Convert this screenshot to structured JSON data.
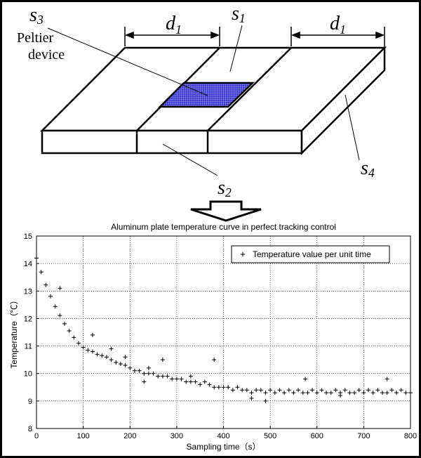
{
  "diagram": {
    "labels": {
      "s3": {
        "base": "s",
        "sub": "3"
      },
      "peltier": [
        "Peltier",
        "device"
      ],
      "d1_left": {
        "base": "d",
        "sub": "1"
      },
      "s1": {
        "base": "s",
        "sub": "1"
      },
      "d1_right": {
        "base": "d",
        "sub": "1"
      },
      "s4": {
        "base": "s",
        "sub": "4"
      },
      "s2": {
        "base": "s",
        "sub": "2"
      }
    }
  },
  "chart_data": {
    "type": "scatter",
    "title": "Aluminum plate temperature curve in perfect tracking control",
    "xlabel": "Sampling time（s）",
    "ylabel": "Temperature（℃）",
    "xlim": [
      0,
      800
    ],
    "xticks": [
      0,
      100,
      200,
      300,
      400,
      500,
      600,
      700,
      800
    ],
    "ylim": [
      8,
      15
    ],
    "yticks": [
      8,
      9,
      10,
      11,
      12,
      13,
      14,
      15
    ],
    "grid": true,
    "legend": "upper right",
    "series": [
      {
        "name": "Temperature value per unit time",
        "color": "#000000",
        "x": [
          0,
          10,
          20,
          30,
          40,
          50,
          60,
          70,
          80,
          90,
          100,
          110,
          120,
          130,
          140,
          150,
          160,
          170,
          180,
          190,
          200,
          210,
          220,
          230,
          240,
          250,
          260,
          270,
          280,
          290,
          300,
          310,
          320,
          330,
          340,
          350,
          360,
          370,
          380,
          390,
          400,
          410,
          420,
          430,
          440,
          450,
          460,
          470,
          480,
          490,
          500,
          510,
          520,
          530,
          540,
          550,
          560,
          570,
          580,
          590,
          600,
          610,
          620,
          630,
          640,
          650,
          660,
          670,
          680,
          690,
          700,
          710,
          720,
          730,
          740,
          750,
          760,
          770,
          780,
          790,
          800,
          50,
          190,
          270,
          380,
          490,
          575,
          750,
          230,
          120,
          160,
          240,
          330,
          460,
          650
        ],
        "values": [
          14.2,
          13.69,
          13.22,
          12.81,
          12.44,
          12.11,
          11.81,
          11.55,
          11.31,
          11.1,
          10.95,
          10.85,
          10.8,
          10.7,
          10.65,
          10.6,
          10.5,
          10.4,
          10.35,
          10.3,
          10.2,
          10.1,
          10.1,
          10.0,
          10.0,
          10.0,
          9.9,
          9.9,
          9.9,
          9.8,
          9.8,
          9.8,
          9.7,
          9.7,
          9.7,
          9.6,
          9.7,
          9.6,
          9.5,
          9.5,
          9.5,
          9.5,
          9.4,
          9.5,
          9.4,
          9.4,
          9.3,
          9.4,
          9.4,
          9.3,
          9.4,
          9.3,
          9.4,
          9.3,
          9.4,
          9.3,
          9.4,
          9.3,
          9.3,
          9.4,
          9.3,
          9.4,
          9.3,
          9.3,
          9.4,
          9.3,
          9.4,
          9.3,
          9.3,
          9.4,
          9.3,
          9.4,
          9.3,
          9.4,
          9.3,
          9.3,
          9.4,
          9.3,
          9.4,
          9.3,
          9.3,
          13.1,
          10.6,
          10.5,
          10.5,
          9.0,
          9.8,
          9.8,
          9.7,
          11.4,
          10.9,
          10.2,
          9.9,
          9.1,
          9.2
        ]
      }
    ]
  }
}
